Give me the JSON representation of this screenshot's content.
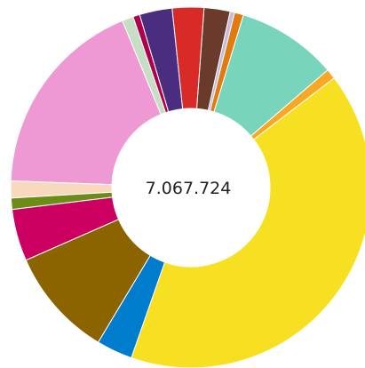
{
  "chart_data": {
    "type": "pie",
    "donut": true,
    "center_label": "7.067.724",
    "start_angle_deg": 96,
    "direction": "counterclockwise",
    "slices": [
      {
        "value": 2.9,
        "color": "#4b2d7f"
      },
      {
        "value": 0.6,
        "color": "#b0004b"
      },
      {
        "value": 1.0,
        "color": "#c6dec3"
      },
      {
        "value": 18.0,
        "color": "#ee98d4"
      },
      {
        "value": 1.5,
        "color": "#f9d9bd"
      },
      {
        "value": 1.0,
        "color": "#6b8c17"
      },
      {
        "value": 4.6,
        "color": "#cc0061"
      },
      {
        "value": 9.7,
        "color": "#8b6400"
      },
      {
        "value": 3.2,
        "color": "#007ccc"
      },
      {
        "value": 40.3,
        "color": "#f7e021"
      },
      {
        "value": 0.9,
        "color": "#f9a825"
      },
      {
        "value": 8.9,
        "color": "#79d4bc"
      },
      {
        "value": 0.8,
        "color": "#e07b10"
      },
      {
        "value": 0.4,
        "color": "#c9b9dd"
      },
      {
        "value": 2.3,
        "color": "#6a3a2a"
      },
      {
        "value": 2.8,
        "color": "#d82b27"
      }
    ]
  }
}
